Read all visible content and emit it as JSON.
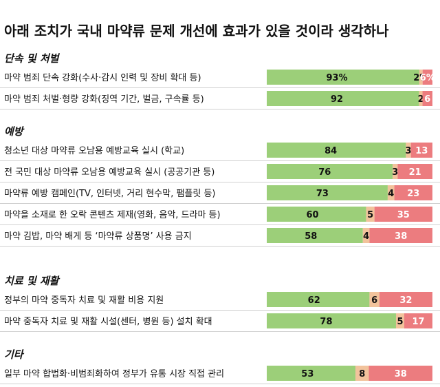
{
  "title": "아래 조치가 국내 마약류 문제 개선에 효과가 있을 것이라 생각하나",
  "colors": {
    "effective": "#9ccf79",
    "neutral": "#f2c39c",
    "not_effective": "#ec7c7f"
  },
  "chart_data": {
    "type": "bar",
    "stacked": true,
    "orientation": "horizontal",
    "xlim": [
      0,
      100
    ],
    "unit": "%",
    "groups": [
      {
        "name": "단속 및 처벌",
        "rows": [
          {
            "label": "마약 범죄 단속 강화(수사·감시 인력 및 장비 확대 등)",
            "values": [
              93,
              2,
              6
            ],
            "labels": [
              "93%",
              "2%",
              "6%"
            ]
          },
          {
            "label": "마약 범죄 처벌·형량 강화(징역 기간, 벌금, 구속률 등)",
            "values": [
              92,
              2,
              6
            ],
            "labels": [
              "92",
              "2",
              "6"
            ]
          }
        ]
      },
      {
        "name": "예방",
        "rows": [
          {
            "label": "청소년 대상 마약류 오남용 예방교육 실시 (학교)",
            "values": [
              84,
              3,
              13
            ],
            "labels": [
              "84",
              "3",
              "13"
            ]
          },
          {
            "label": "전 국민 대상 마약류 오남용 예방교육 실시 (공공기관 등)",
            "values": [
              76,
              3,
              21
            ],
            "labels": [
              "76",
              "3",
              "21"
            ]
          },
          {
            "label": "마약류 예방 캠페인(TV, 인터넷, 거리 현수막, 팸플릿 등)",
            "values": [
              73,
              4,
              23
            ],
            "labels": [
              "73",
              "4",
              "23"
            ]
          },
          {
            "label": "마약을 소재로 한 오락 콘텐츠 제재(영화, 음악, 드라마 등)",
            "values": [
              60,
              5,
              35
            ],
            "labels": [
              "60",
              "5",
              "35"
            ]
          },
          {
            "label": "마약 김밥, 마약 배게 등 ‘마약류 상품명’ 사용 금지",
            "values": [
              58,
              4,
              38
            ],
            "labels": [
              "58",
              "4",
              "38"
            ]
          }
        ]
      },
      {
        "name": "치료 및 재활",
        "rows": [
          {
            "label": "정부의 마약 중독자 치료 및 재활 비용 지원",
            "values": [
              62,
              6,
              32
            ],
            "labels": [
              "62",
              "6",
              "32"
            ]
          },
          {
            "label": "마약 중독자 치료 및 재활 시설(센터, 병원 등) 설치 확대",
            "values": [
              78,
              5,
              17
            ],
            "labels": [
              "78",
              "5",
              "17"
            ]
          }
        ]
      },
      {
        "name": "기타",
        "rows": [
          {
            "label": "일부 마약 합법화·비범죄화하여 정부가 유통 시장 직접 관리",
            "values": [
              53,
              8,
              38
            ],
            "labels": [
              "53",
              "8",
              "38"
            ]
          }
        ]
      }
    ]
  }
}
